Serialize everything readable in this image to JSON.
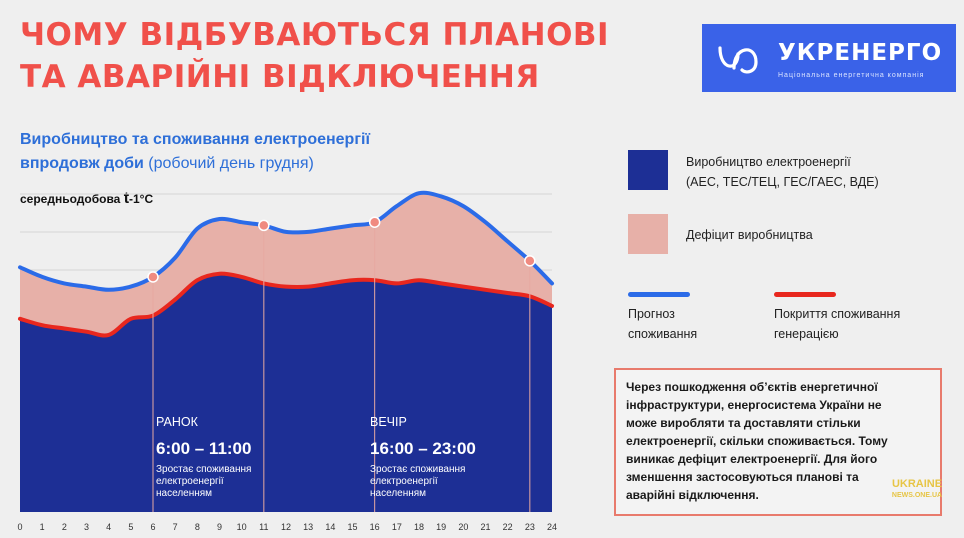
{
  "header": {
    "title_line1": "ЧОМУ ВІДБУВАЮТЬСЯ ПЛАНОВІ",
    "title_line2": "ТА АВАРІЙНІ ВІДКЛЮЧЕННЯ"
  },
  "logo": {
    "name": "УКРЕНЕРГО",
    "subtitle": "Національна енергетична компанія",
    "brand_color": "#3a62e8"
  },
  "watermark": {
    "line1": "UKRAINE",
    "line2": "NEWS.ONE.UA"
  },
  "chart_data": {
    "type": "area",
    "title_line1": "Виробництво та споживання електроенергії",
    "title_line2_bold": "впродовж доби",
    "title_line2_light": "(робочий день грудня)",
    "temperature_label": "середньодобова ",
    "temperature_t": "t",
    "temperature_value": "-1°C",
    "x": [
      0,
      1,
      2,
      3,
      4,
      5,
      6,
      7,
      8,
      9,
      10,
      11,
      12,
      13,
      14,
      15,
      16,
      17,
      18,
      19,
      20,
      21,
      22,
      23,
      24
    ],
    "xlim": [
      0,
      24
    ],
    "ylim": [
      0,
      1
    ],
    "grid": true,
    "series": [
      {
        "name": "Виробництво електроенергії (АЕС, ТЕС/ТЕЦ, ГЕС/ГАЕС, ВДЕ)",
        "key": "production",
        "color": "#1d2f95",
        "values": [
          0.6,
          0.58,
          0.57,
          0.56,
          0.55,
          0.6,
          0.61,
          0.66,
          0.72,
          0.74,
          0.73,
          0.71,
          0.7,
          0.7,
          0.71,
          0.72,
          0.72,
          0.71,
          0.72,
          0.71,
          0.7,
          0.69,
          0.68,
          0.67,
          0.64
        ]
      },
      {
        "name": "Прогноз споживання",
        "key": "forecast",
        "color": "#2b6be8",
        "values": [
          0.76,
          0.73,
          0.71,
          0.7,
          0.69,
          0.7,
          0.73,
          0.79,
          0.88,
          0.91,
          0.9,
          0.89,
          0.87,
          0.87,
          0.88,
          0.89,
          0.9,
          0.95,
          0.99,
          0.98,
          0.95,
          0.9,
          0.84,
          0.78,
          0.71
        ]
      },
      {
        "name": "Покриття споживання генерацією",
        "key": "coverage",
        "color": "#e8271e",
        "values": [
          0.6,
          0.58,
          0.57,
          0.56,
          0.55,
          0.6,
          0.61,
          0.66,
          0.72,
          0.74,
          0.73,
          0.71,
          0.7,
          0.7,
          0.71,
          0.72,
          0.72,
          0.71,
          0.72,
          0.71,
          0.7,
          0.69,
          0.68,
          0.67,
          0.64
        ]
      }
    ],
    "deficit": {
      "name": "Дефіцит виробництва",
      "color": "#e7b0a8"
    },
    "markers_x": [
      6,
      11,
      16,
      23
    ],
    "periods": [
      {
        "label": "РАНОК",
        "time": "6:00 – 11:00",
        "desc1": "Зростає споживання",
        "desc2": "електроенергії",
        "desc3": "населенням"
      },
      {
        "label": "ВЕЧІР",
        "time": "16:00 – 23:00",
        "desc1": "Зростає споживання",
        "desc2": "електроенергії",
        "desc3": "населенням"
      }
    ]
  },
  "legend": {
    "production_line1": "Виробництво електроенергії",
    "production_line2": "(АЕС, ТЕС/ТЕЦ, ГЕС/ГАЕС, ВДЕ)",
    "deficit": "Дефіцит виробництва",
    "forecast_line1": "Прогноз",
    "forecast_line2": "споживання",
    "coverage_line1": "Покриття споживання",
    "coverage_line2": "генерацією"
  },
  "note": {
    "line1": "Через пошкодження об’єктів енергетичної",
    "line2": "інфраструктури, енергосистема України не",
    "line3": "може виробляти та доставляти стільки",
    "line4": "електроенергії, скільки споживається. Тому",
    "line5": "виникає дефіцит електроенергії. Для його",
    "line6": "зменшення застосовуються планові та",
    "line7": "аварійні відключення."
  }
}
